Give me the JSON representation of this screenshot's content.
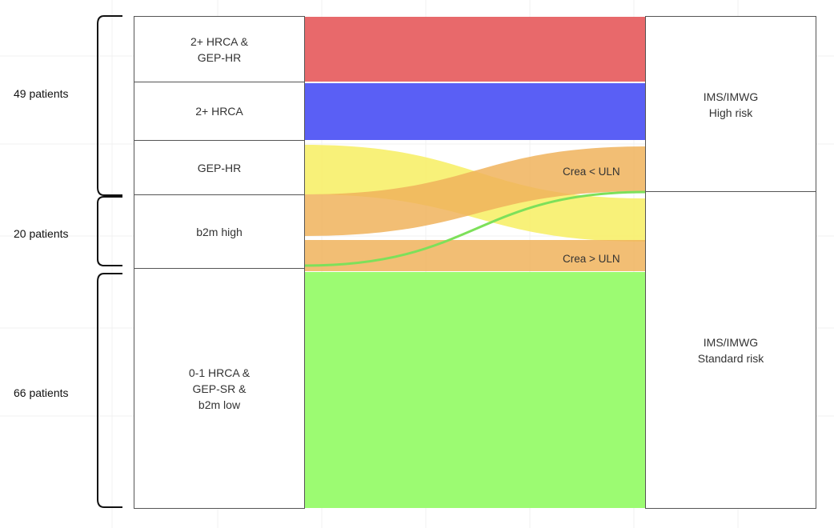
{
  "groups": [
    {
      "label": "49 patients"
    },
    {
      "label": "20 patients"
    },
    {
      "label": "66 patients"
    }
  ],
  "left_nodes": [
    {
      "label": "2+ HRCA &\nGEP-HR"
    },
    {
      "label": "2+ HRCA"
    },
    {
      "label": "GEP-HR"
    },
    {
      "label": "b2m high"
    },
    {
      "label": "0-1 HRCA &\nGEP-SR &\nb2m low"
    }
  ],
  "right_nodes": [
    {
      "label": "IMS/IMWG\nHigh risk"
    },
    {
      "label": "IMS/IMWG\nStandard risk"
    }
  ],
  "flow_labels": {
    "crea_low": "Crea < ULN",
    "crea_high": "Crea > ULN"
  },
  "colors": {
    "red": "#e8696b",
    "blue": "#5a5ff5",
    "yellow": "#f7f06a",
    "orange": "#f0b35c",
    "green": "#9cfb72",
    "green_line": "#7de05a"
  }
}
